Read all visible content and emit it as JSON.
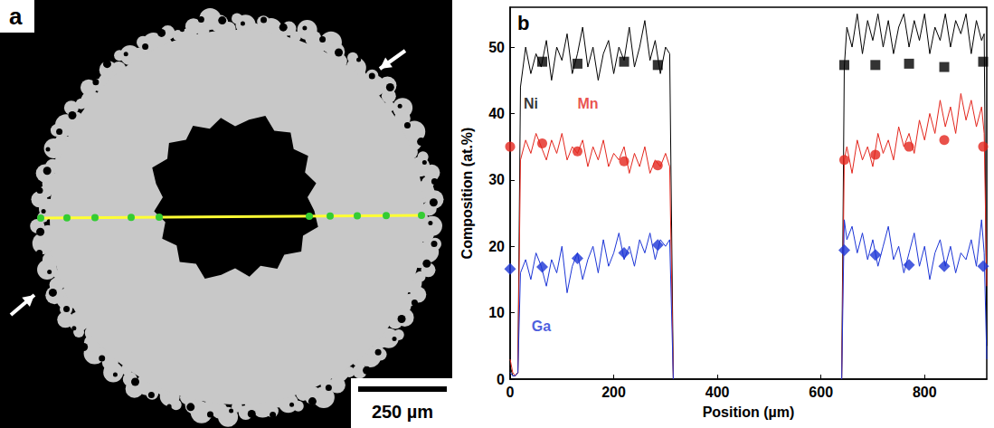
{
  "image_panel": {
    "panel_label": "a",
    "scale_bar": "250 µm"
  },
  "chart_data": {
    "type": "line",
    "panel_label": "b",
    "x_label": "Position (µm)",
    "y_label": "Composition (at.%)",
    "xlim": [
      0,
      920
    ],
    "xticks": [
      0,
      200,
      400,
      600,
      800
    ],
    "ylim": [
      0,
      56
    ],
    "yticks": [
      0,
      10,
      20,
      30,
      40,
      50
    ],
    "grid": false,
    "x": [
      0,
      5,
      10,
      15,
      20,
      30,
      40,
      50,
      60,
      70,
      80,
      90,
      100,
      110,
      120,
      130,
      140,
      150,
      160,
      170,
      180,
      190,
      200,
      210,
      220,
      230,
      240,
      250,
      260,
      270,
      280,
      290,
      300,
      308,
      315,
      480,
      640,
      645,
      650,
      660,
      670,
      680,
      690,
      700,
      710,
      720,
      730,
      740,
      750,
      760,
      770,
      780,
      790,
      800,
      810,
      820,
      830,
      840,
      850,
      860,
      870,
      880,
      890,
      900,
      910,
      915,
      920
    ],
    "series": [
      {
        "type": "line",
        "color": "#000000",
        "line_style": "solid",
        "values": [
          2,
          0.5,
          0.5,
          1,
          44,
          50,
          46,
          49,
          47,
          51,
          45,
          50,
          48,
          52,
          46,
          49,
          53,
          47,
          50,
          45,
          49,
          51,
          46,
          50,
          48,
          53,
          47,
          50,
          54,
          48,
          51,
          46,
          50,
          49,
          0,
          null,
          0,
          47,
          53,
          50,
          55,
          49,
          54,
          51,
          55,
          50,
          54,
          49,
          53,
          55,
          50,
          54,
          51,
          55,
          49,
          53,
          51,
          55,
          50,
          54,
          52,
          55,
          49,
          54,
          51,
          52,
          5
        ]
      },
      {
        "type": "line",
        "color": "#e3261d",
        "line_style": "solid",
        "values": [
          3,
          1,
          0.5,
          1,
          33,
          36,
          34,
          37,
          35,
          33,
          36,
          34,
          37,
          33,
          35,
          34,
          36,
          32,
          35,
          33,
          36,
          32,
          34,
          33,
          35,
          31,
          34,
          32,
          35,
          31,
          33,
          32,
          34,
          32,
          0,
          null,
          0,
          33,
          35,
          31,
          36,
          33,
          35,
          32,
          37,
          34,
          36,
          33,
          38,
          35,
          37,
          34,
          39,
          36,
          40,
          37,
          42,
          38,
          41,
          37,
          43,
          39,
          42,
          38,
          41,
          37,
          14
        ]
      },
      {
        "type": "line",
        "color": "#1c35d6",
        "line_style": "solid",
        "values": [
          1,
          0.5,
          0.5,
          1,
          16,
          18,
          15,
          19,
          17,
          14,
          18,
          16,
          20,
          13,
          17,
          19,
          15,
          18,
          20,
          16,
          21,
          17,
          19,
          22,
          18,
          20,
          17,
          21,
          19,
          22,
          18,
          21,
          20,
          21,
          0,
          null,
          0,
          24,
          21,
          23,
          19,
          22,
          18,
          21,
          17,
          20,
          23,
          18,
          20,
          16,
          19,
          22,
          17,
          20,
          15,
          19,
          21,
          17,
          20,
          16,
          19,
          18,
          21,
          17,
          24,
          19,
          3
        ]
      },
      {
        "type": "scatter",
        "color": "#000000",
        "marker": "square",
        "x": [
          62,
          130,
          220,
          285,
          645,
          705,
          770,
          838,
          913
        ],
        "values": [
          47.8,
          47.5,
          47.8,
          47.3,
          47.3,
          47.3,
          47.5,
          47,
          47.8
        ]
      },
      {
        "type": "scatter",
        "color": "#e3261d",
        "marker": "circle",
        "x": [
          0,
          62,
          130,
          220,
          285,
          645,
          705,
          770,
          838,
          913
        ],
        "values": [
          35,
          35.5,
          34.3,
          32.8,
          32.2,
          33,
          33.8,
          35,
          36,
          35
        ]
      },
      {
        "type": "scatter",
        "color": "#1c35d6",
        "marker": "diamond",
        "x": [
          0,
          62,
          130,
          220,
          285,
          645,
          705,
          770,
          838,
          913
        ],
        "values": [
          16.6,
          16.9,
          18.2,
          19,
          20.2,
          19.4,
          18.7,
          17.2,
          17,
          17
        ]
      }
    ],
    "annotations": [
      {
        "text": "Ni",
        "x": 40,
        "y": 41.5,
        "color": "#000000"
      },
      {
        "text": "Mn",
        "x": 150,
        "y": 41.5,
        "color": "#e3261d"
      },
      {
        "text": "Ga",
        "x": 60,
        "y": 8,
        "color": "#1c35d6"
      }
    ]
  }
}
